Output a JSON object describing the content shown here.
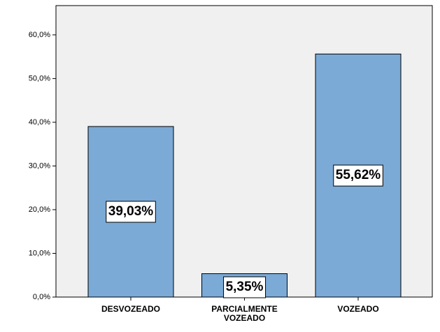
{
  "chart_data": {
    "type": "bar",
    "categories": [
      "DESVOZEADO",
      "PARCIALMENTE VOZEADO",
      "VOZEADO"
    ],
    "values": [
      39.03,
      5.35,
      55.62
    ],
    "value_labels": [
      "39,03%",
      "5,35%",
      "55,62%"
    ],
    "color": "#7baad6",
    "ylim": [
      0,
      66.7
    ],
    "yticks": [
      {
        "value": 0,
        "label": "0,0%"
      },
      {
        "value": 10,
        "label": "10,0%"
      },
      {
        "value": 20,
        "label": "20,0%"
      },
      {
        "value": 30,
        "label": "30,0%"
      },
      {
        "value": 40,
        "label": "40,0%"
      },
      {
        "value": 50,
        "label": "50,0%"
      },
      {
        "value": 60,
        "label": "60,0%"
      }
    ]
  }
}
